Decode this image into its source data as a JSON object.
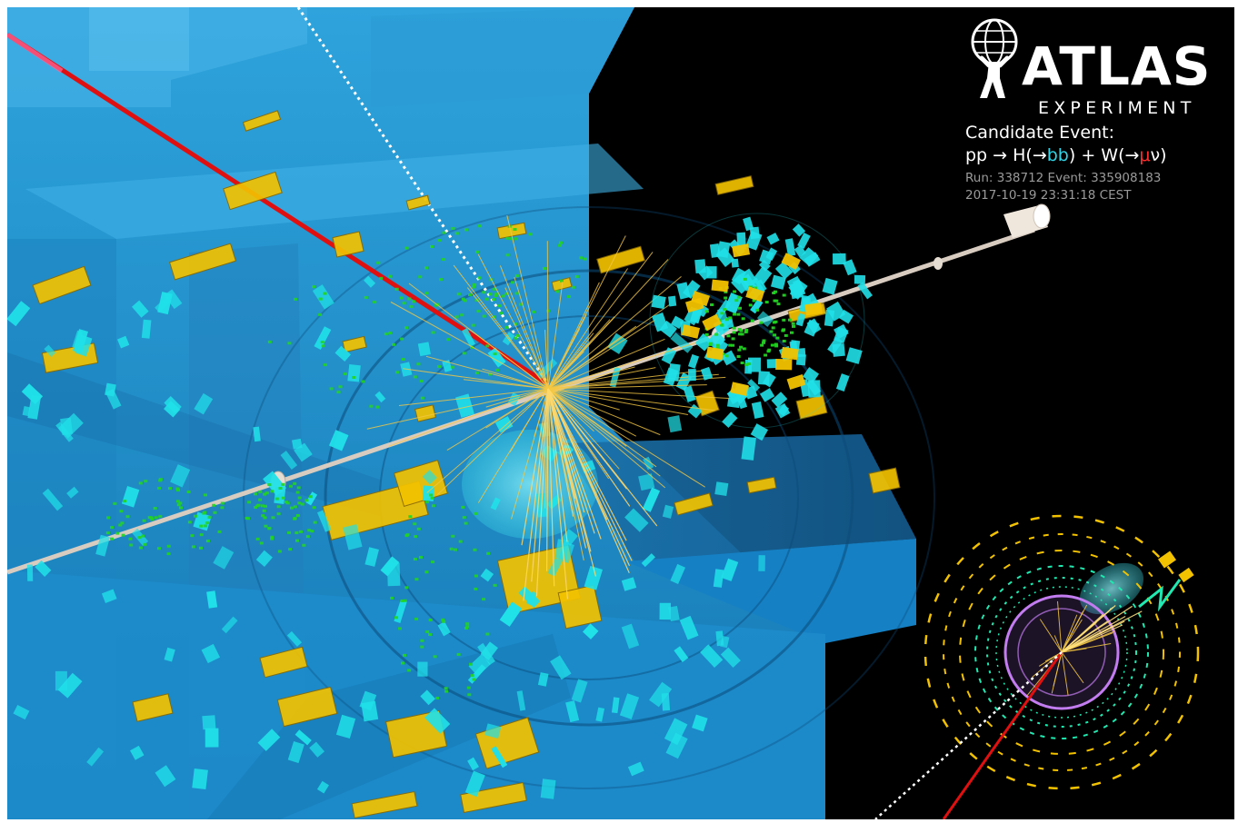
{
  "logo": {
    "title": "ATLAS",
    "subtitle": "EXPERIMENT",
    "emblem": "atlas-figure-icon"
  },
  "event": {
    "heading": "Candidate Event:",
    "process": {
      "pp": "pp",
      "arrow1": " → ",
      "h": "H(→",
      "bb": "bb",
      "close1": ") + W(→",
      "mu": "μ",
      "nu": "ν)"
    },
    "run": "Run: 338712 Event: 335908183",
    "timestamp": "2017-10-19 23:31:18 CEST"
  },
  "colors": {
    "background": "#000000",
    "detector_blue": "#1e90c8",
    "muon_track": "#e01010",
    "neutrino_met": "#ffffff",
    "calorimeter_yellow": "#f2c200",
    "hits_cyan": "#20e0e8",
    "tracks_green": "#22d422",
    "jet_cone": "#5fe6f0",
    "beam_pipe": "#d8ccc0",
    "inset_ring": "#b070e0"
  }
}
